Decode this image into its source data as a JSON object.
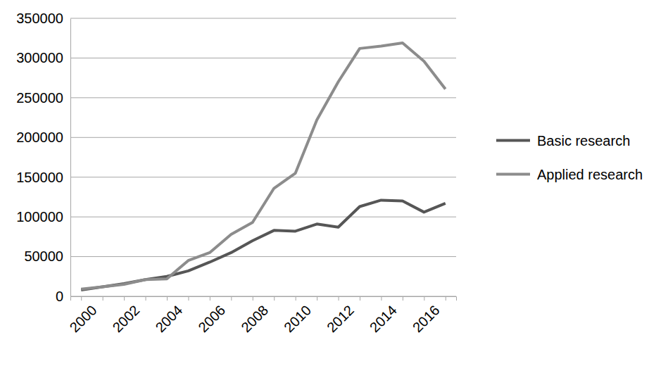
{
  "chart_data": {
    "type": "line",
    "categories": [
      "2000",
      null,
      "2002",
      null,
      "2004",
      null,
      "2006",
      null,
      "2008",
      null,
      "2010",
      null,
      "2012",
      null,
      "2014",
      null,
      "2016",
      null
    ],
    "series": [
      {
        "name": "Basic research",
        "color": "#565656",
        "values": [
          8000,
          12000,
          16000,
          21000,
          25000,
          32000,
          43000,
          55000,
          70000,
          83000,
          82000,
          91000,
          87000,
          113000,
          121000,
          120000,
          106000,
          117000
        ]
      },
      {
        "name": "Applied research",
        "color": "#8c8c8c",
        "values": [
          9000,
          12000,
          15000,
          21000,
          22000,
          45000,
          55000,
          78000,
          93000,
          136000,
          155000,
          222000,
          270000,
          312000,
          315000,
          319000,
          296000,
          261000
        ]
      }
    ],
    "ylim": [
      0,
      350000
    ],
    "yticks": [
      0,
      50000,
      100000,
      150000,
      200000,
      250000,
      300000,
      350000
    ],
    "grid": true,
    "legend": "right"
  }
}
